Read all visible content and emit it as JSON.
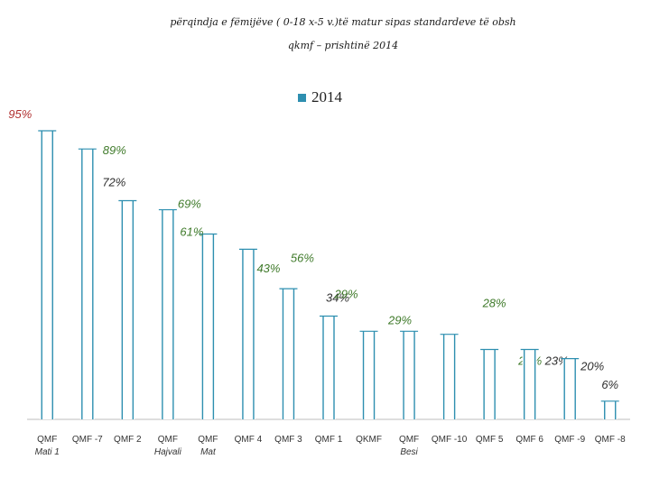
{
  "chart_data": {
    "type": "bar",
    "title_line1": "përqindja e fëmijëve ( 0-18 x-5 v.)të matur sipas standardeve  të obsh",
    "title_line2": "qkmf – prishtinë  2014",
    "legend": [
      "2014"
    ],
    "categories": [
      [
        "QMF",
        "Mati 1"
      ],
      [
        "QMF -7"
      ],
      [
        "QMF 2"
      ],
      [
        "QMF",
        "Hajvali"
      ],
      [
        "QMF",
        "Mat"
      ],
      [
        "QMF 4"
      ],
      [
        "QMF 3"
      ],
      [
        "QMF 1"
      ],
      [
        "QKMF"
      ],
      [
        "QMF",
        "Besi"
      ],
      [
        "QMF -10"
      ],
      [
        "QMF 5"
      ],
      [
        "QMF 6"
      ],
      [
        "QMF -9"
      ],
      [
        "QMF -8"
      ]
    ],
    "values": [
      95,
      89,
      72,
      69,
      61,
      56,
      43,
      34,
      29,
      29,
      28,
      23,
      23,
      20,
      6
    ],
    "value_labels": [
      "95%",
      "89%",
      "72%",
      "69%",
      "61%",
      "56%",
      "43%",
      "34%",
      "29%",
      "29%",
      "28%",
      "23%",
      "23%",
      "20%",
      "6%"
    ],
    "ylim": [
      0,
      100
    ],
    "series_color": "#2e8fb0",
    "label_colors": [
      "#b03030",
      "#3f7a2a",
      "#2f2f2f",
      "#3f7a2a",
      "#3f7a2a",
      "#3f7a2a",
      "#3f7a2a",
      "#2f2f2f",
      "#3f7a2a",
      "#3f7a2a",
      "#3f7a2a",
      "#3f7a2a",
      "#2f2f2f",
      "#2f2f2f",
      "#2f2f2f"
    ]
  }
}
